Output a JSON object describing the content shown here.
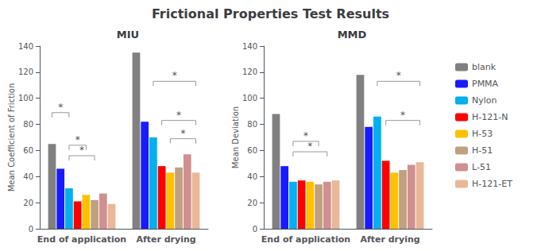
{
  "title": "Frictional Properties Test Results",
  "legend": "right",
  "chart_data": [
    {
      "type": "bar",
      "title": "MIU",
      "ylabel": "Mean Coefficient of Friction",
      "categories": [
        "End of application",
        "After drying"
      ],
      "ylim": [
        0,
        140
      ],
      "yticks": [
        0,
        20,
        40,
        60,
        80,
        100,
        120,
        140
      ],
      "grid": false,
      "series": [
        {
          "name": "blank",
          "color": "#808080",
          "values": [
            65,
            135
          ]
        },
        {
          "name": "PMMA",
          "color": "#1a1aff",
          "values": [
            46,
            82
          ]
        },
        {
          "name": "Nylon",
          "color": "#00b0f0",
          "values": [
            31,
            70
          ]
        },
        {
          "name": "H-121-N",
          "color": "#ff0000",
          "values": [
            21,
            48
          ]
        },
        {
          "name": "H-53",
          "color": "#ffc000",
          "values": [
            26,
            43
          ]
        },
        {
          "name": "H-51",
          "color": "#c0a080",
          "values": [
            22,
            47
          ]
        },
        {
          "name": "L-51",
          "color": "#d09090",
          "values": [
            27,
            57
          ]
        },
        {
          "name": "H-121-ET",
          "color": "#e8b898",
          "values": [
            19,
            43
          ]
        }
      ],
      "annotations": [
        {
          "text": "*",
          "category": "End of application",
          "from": "blank",
          "to": "Nylon",
          "y": 89
        },
        {
          "text": "*",
          "category": "End of application",
          "from": "Nylon",
          "to": "H-53",
          "y": 64
        },
        {
          "text": "*",
          "category": "End of application",
          "from": "Nylon",
          "to": "H-51",
          "y": 56
        },
        {
          "text": "*",
          "category": "After drying",
          "from": "Nylon",
          "to": "H-121-ET",
          "y": 113
        },
        {
          "text": "*",
          "category": "After drying",
          "from": "H-121-N",
          "to": "H-121-ET",
          "y": 83
        },
        {
          "text": "*",
          "category": "After drying",
          "from": "H-53",
          "to": "H-121-ET",
          "y": 69
        }
      ]
    },
    {
      "type": "bar",
      "title": "MMD",
      "ylabel": "Mean Deviation",
      "categories": [
        "End of application",
        "After drying"
      ],
      "ylim": [
        0,
        140
      ],
      "yticks": [
        0,
        20,
        40,
        60,
        80,
        100,
        120,
        140
      ],
      "grid": false,
      "series": [
        {
          "name": "blank",
          "color": "#808080",
          "values": [
            88,
            118
          ]
        },
        {
          "name": "PMMA",
          "color": "#1a1aff",
          "values": [
            48,
            78
          ]
        },
        {
          "name": "Nylon",
          "color": "#00b0f0",
          "values": [
            36,
            86
          ]
        },
        {
          "name": "H-121-N",
          "color": "#ff0000",
          "values": [
            37,
            52
          ]
        },
        {
          "name": "H-53",
          "color": "#ffc000",
          "values": [
            36,
            43
          ]
        },
        {
          "name": "H-51",
          "color": "#c0a080",
          "values": [
            34,
            45
          ]
        },
        {
          "name": "L-51",
          "color": "#d09090",
          "values": [
            36,
            49
          ]
        },
        {
          "name": "H-121-ET",
          "color": "#e8b898",
          "values": [
            37,
            51
          ]
        }
      ],
      "annotations": [
        {
          "text": "*",
          "category": "End of application",
          "from": "Nylon",
          "to": "H-51",
          "y": 67
        },
        {
          "text": "*",
          "category": "End of application",
          "from": "Nylon",
          "to": "L-51",
          "y": 59
        },
        {
          "text": "*",
          "category": "After drying",
          "from": "Nylon",
          "to": "H-121-ET",
          "y": 113
        },
        {
          "text": "*",
          "category": "After drying",
          "from": "H-121-N",
          "to": "H-121-ET",
          "y": 83
        }
      ]
    }
  ]
}
